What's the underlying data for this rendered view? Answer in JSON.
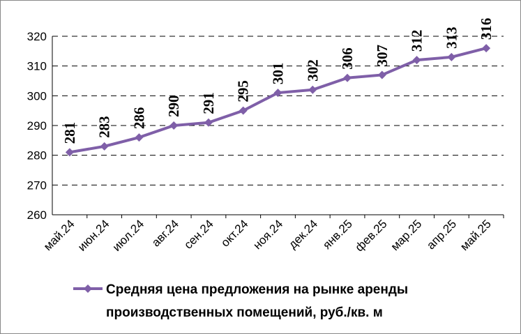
{
  "chart_data": {
    "type": "line",
    "categories": [
      "май.24",
      "июн.24",
      "июл.24",
      "авг.24",
      "сен.24",
      "окт.24",
      "ноя.24",
      "дек.24",
      "янв.25",
      "фев.25",
      "мар.25",
      "апр.25",
      "май.25"
    ],
    "series": [
      {
        "name": "Средняя цена предложения на рынке аренды производственных помещений,  руб./кв. м",
        "color": "#7f5fa8",
        "values": [
          281,
          283,
          286,
          290,
          291,
          295,
          301,
          302,
          306,
          307,
          312,
          313,
          316
        ]
      }
    ],
    "ylim": [
      260,
      320
    ],
    "yticks": [
      260,
      270,
      280,
      290,
      300,
      310,
      320
    ],
    "grid": true,
    "legend": "bottom"
  }
}
